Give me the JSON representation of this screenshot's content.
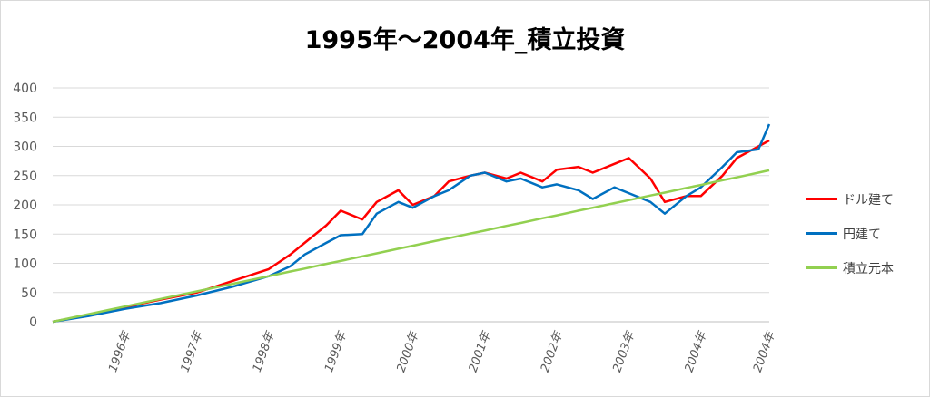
{
  "chart_data": {
    "type": "line",
    "title": "1995年～2004年_積立投資",
    "xlabel": "",
    "ylabel": "",
    "ylim": [
      0,
      400
    ],
    "yticks": [
      0,
      50,
      100,
      150,
      200,
      250,
      300,
      350,
      400
    ],
    "xticks": [
      "1996年",
      "1997年",
      "1998年",
      "1999年",
      "2000年",
      "2001年",
      "2002年",
      "2003年",
      "2004年",
      "2004年"
    ],
    "grid": "horizontal",
    "legend_position": "right",
    "x": [
      1995.0,
      1995.5,
      1996.0,
      1996.5,
      1997.0,
      1997.5,
      1998.0,
      1998.3,
      1998.5,
      1998.8,
      1999.0,
      1999.3,
      1999.5,
      1999.8,
      2000.0,
      2000.3,
      2000.5,
      2000.8,
      2001.0,
      2001.3,
      2001.5,
      2001.8,
      2002.0,
      2002.3,
      2002.5,
      2002.8,
      2003.0,
      2003.3,
      2003.5,
      2003.8,
      2004.0,
      2004.3,
      2004.5,
      2004.8,
      2004.95
    ],
    "series": [
      {
        "name": "ドル建て",
        "color": "#ff0000",
        "values": [
          0,
          12,
          25,
          38,
          50,
          70,
          90,
          115,
          135,
          165,
          190,
          175,
          205,
          225,
          200,
          215,
          240,
          250,
          255,
          245,
          255,
          240,
          260,
          265,
          255,
          270,
          280,
          245,
          205,
          215,
          215,
          250,
          280,
          300,
          310
        ]
      },
      {
        "name": "円建て",
        "color": "#0070c0",
        "values": [
          0,
          10,
          22,
          32,
          45,
          60,
          78,
          95,
          115,
          135,
          148,
          150,
          185,
          205,
          195,
          215,
          225,
          250,
          255,
          240,
          245,
          230,
          235,
          225,
          210,
          230,
          220,
          205,
          185,
          215,
          230,
          265,
          290,
          295,
          338
        ]
      },
      {
        "name": "積立元本",
        "color": "#92d050",
        "values": [
          0,
          13,
          26,
          39,
          52,
          65,
          78,
          86,
          91,
          99,
          104,
          112,
          117,
          125,
          130,
          138,
          143,
          151,
          156,
          164,
          169,
          177,
          182,
          190,
          195,
          203,
          208,
          216,
          221,
          229,
          234,
          242,
          247,
          255,
          259
        ]
      }
    ]
  }
}
